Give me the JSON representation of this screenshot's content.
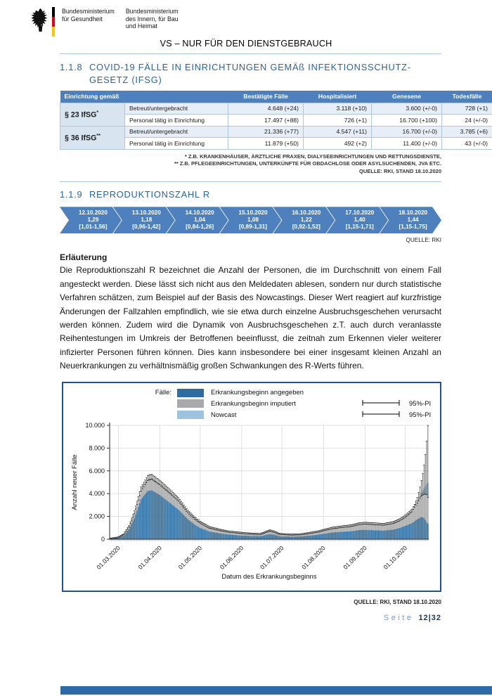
{
  "header": {
    "ministry1": [
      "Bundesministerium",
      "für Gesundheit"
    ],
    "ministry2": [
      "Bundesministerium",
      "des Innern, für Bau",
      "und Heimat"
    ],
    "classification": "VS – NUR FÜR DEN DIENSTGEBRAUCH"
  },
  "sections": {
    "s118": {
      "number": "1.1.8",
      "title": "COVID-19 FÄLLE IN EINRICHTUNGEN GEMÄß INFEKTIONSSCHUTZ-GESETZ (IFSG)"
    },
    "s119": {
      "number": "1.1.9",
      "title": "REPRODUKTIONSZAHL R"
    }
  },
  "table": {
    "headers": [
      "Einrichtung gemäß",
      "Bestätigte Fälle",
      "Hospitalisiert",
      "Genesene",
      "Todesfälle"
    ],
    "groups": [
      {
        "label": "§ 23 IfSG",
        "sup": "*",
        "rows": [
          {
            "name": "Betreut/untergebracht",
            "cells": [
              "4.648 (+24)",
              "3.118 (+10)",
              "3.600 (+/-0)",
              "728 (+1)"
            ]
          },
          {
            "name": "Personal tätig in Einrichtung",
            "cells": [
              "17.497 (+88)",
              "726 (+1)",
              "16.700 (+100)",
              "24 (+/-0)"
            ]
          }
        ]
      },
      {
        "label": "§ 36 IfSG",
        "sup": "**",
        "rows": [
          {
            "name": "Betreut/untergebracht",
            "cells": [
              "21.336 (+77)",
              "4.547 (+11)",
              "16.700 (+/-0)",
              "3.785 (+6)"
            ]
          },
          {
            "name": "Personal tätig in Einrichtung",
            "cells": [
              "11.879 (+50)",
              "492 (+2)",
              "11.400 (+/-0)",
              "43 (+/-0)"
            ]
          }
        ]
      }
    ]
  },
  "footnotes": [
    "* Z.B. KRANKENHÄUSER, ÄRZTLICHE PRAXEN, DIALYSEEINRICHTUNGEN UND RETTUNGSDIENSTE,",
    "** Z.B. PFLEGEEINRICHTUNGEN, UNTERKÜNFTE FÜR OBDACHLOSE ODER ASYLSUCHENDEN, JVA ETC.",
    "QUELLE: RKI, STAND 18.10.2020"
  ],
  "r_values": [
    {
      "date": "12.10.2020",
      "r": "1,29",
      "ci": "[1,01-1,56]"
    },
    {
      "date": "13.10.2020",
      "r": "1,18",
      "ci": "[0,96-1,42]"
    },
    {
      "date": "14.10.2020",
      "r": "1,04",
      "ci": "[0,84-1,26]"
    },
    {
      "date": "15.10.2020",
      "r": "1,08",
      "ci": "[0,89-1,31]"
    },
    {
      "date": "16.10.2020",
      "r": "1,22",
      "ci": "[0,92-1,52]"
    },
    {
      "date": "17.10.2020",
      "r": "1,40",
      "ci": "[1,15-1,71]"
    },
    {
      "date": "18.10.2020",
      "r": "1,44",
      "ci": "[1,15-1,75]"
    }
  ],
  "r_source": "QUELLE: RKI",
  "explanation": {
    "title": "Erläuterung",
    "body": "Die Reproduktionszahl R bezeichnet die Anzahl der Personen, die im Durchschnitt von einem Fall angesteckt werden. Diese lässt sich nicht aus den Meldedaten ablesen, sondern nur durch statistische Verfahren schätzen, zum Beispiel auf der Basis des Nowcastings. Dieser Wert reagiert auf kurzfristige Änderungen der Fallzahlen empfindlich, wie sie etwa durch einzelne Ausbruchsgeschehen verursacht werden können. Zudem wird die Dynamik von Ausbruchsgeschehen z.T. auch durch veranlasste Reihentestungen im Umkreis der Betroffenen beeinflusst, die zeitnah zum Erkennen vieler weiterer infizierter Personen führen können. Dies kann insbesondere bei einer insgesamt kleinen Anzahl an Neuerkrankungen zu verhältnismäßig großen Schwankungen des R-Werts führen."
  },
  "chart_data": {
    "type": "bar",
    "stacked": true,
    "legend_label": "Fälle:",
    "series_legend": [
      {
        "name": "Erkrankungsbeginn angegeben",
        "color": "#2e6d9e",
        "pi_label": ""
      },
      {
        "name": "Erkrankungsbeginn imputiert",
        "color": "#a9a9a9",
        "pi_label": "95%-PI"
      },
      {
        "name": "Nowcast",
        "color": "#9cc3e0",
        "pi_label": "95%-PI"
      }
    ],
    "ylabel": "Anzahl neuer Fälle",
    "xlabel": "Datum des Erkrankungsbeginns",
    "ylim": [
      0,
      10000
    ],
    "grid": true,
    "y_ticks": [
      {
        "v": 0,
        "label": "0"
      },
      {
        "v": 2000,
        "label": "2.000"
      },
      {
        "v": 4000,
        "label": "4.000"
      },
      {
        "v": 6000,
        "label": "6.000"
      },
      {
        "v": 8000,
        "label": "8.000"
      },
      {
        "v": 10000,
        "label": "10.000"
      }
    ],
    "day_zero": "24.02.2020",
    "x_ticks": [
      {
        "d": 6,
        "label": "01.03.2020"
      },
      {
        "d": 37,
        "label": "01.04.2020"
      },
      {
        "d": 67,
        "label": "01.05.2020"
      },
      {
        "d": 98,
        "label": "01.06.2020"
      },
      {
        "d": 128,
        "label": "01.07.2020"
      },
      {
        "d": 159,
        "label": "01.08.2020"
      },
      {
        "d": 190,
        "label": "01.09.2020"
      },
      {
        "d": 220,
        "label": "01.10.2020"
      }
    ],
    "anchors": [
      {
        "d": 0,
        "t": 40,
        "b": 32
      },
      {
        "d": 6,
        "t": 140,
        "b": 112
      },
      {
        "d": 10,
        "t": 400,
        "b": 320
      },
      {
        "d": 14,
        "t": 1100,
        "b": 880
      },
      {
        "d": 18,
        "t": 2300,
        "b": 1840
      },
      {
        "d": 23,
        "t": 4300,
        "b": 3500
      },
      {
        "d": 28,
        "t": 5250,
        "b": 4250
      },
      {
        "d": 31,
        "t": 5350,
        "b": 4300
      },
      {
        "d": 34,
        "t": 5100,
        "b": 4100
      },
      {
        "d": 37,
        "t": 4850,
        "b": 3900
      },
      {
        "d": 44,
        "t": 4150,
        "b": 3250
      },
      {
        "d": 51,
        "t": 3400,
        "b": 2600
      },
      {
        "d": 58,
        "t": 2350,
        "b": 1750
      },
      {
        "d": 63,
        "t": 1800,
        "b": 1300
      },
      {
        "d": 67,
        "t": 1450,
        "b": 1000
      },
      {
        "d": 74,
        "t": 1000,
        "b": 680
      },
      {
        "d": 81,
        "t": 800,
        "b": 540
      },
      {
        "d": 88,
        "t": 640,
        "b": 420
      },
      {
        "d": 98,
        "t": 520,
        "b": 330
      },
      {
        "d": 105,
        "t": 460,
        "b": 290
      },
      {
        "d": 112,
        "t": 430,
        "b": 270
      },
      {
        "d": 116,
        "t": 600,
        "b": 380
      },
      {
        "d": 119,
        "t": 730,
        "b": 450
      },
      {
        "d": 122,
        "t": 640,
        "b": 400
      },
      {
        "d": 126,
        "t": 450,
        "b": 280
      },
      {
        "d": 128,
        "t": 420,
        "b": 260
      },
      {
        "d": 135,
        "t": 380,
        "b": 235
      },
      {
        "d": 142,
        "t": 400,
        "b": 250
      },
      {
        "d": 149,
        "t": 520,
        "b": 330
      },
      {
        "d": 155,
        "t": 640,
        "b": 400
      },
      {
        "d": 159,
        "t": 760,
        "b": 480
      },
      {
        "d": 166,
        "t": 950,
        "b": 600
      },
      {
        "d": 173,
        "t": 1060,
        "b": 660
      },
      {
        "d": 180,
        "t": 1150,
        "b": 710
      },
      {
        "d": 186,
        "t": 1320,
        "b": 810
      },
      {
        "d": 190,
        "t": 1360,
        "b": 830
      },
      {
        "d": 197,
        "t": 1310,
        "b": 790
      },
      {
        "d": 204,
        "t": 1260,
        "b": 760
      },
      {
        "d": 211,
        "t": 1410,
        "b": 850
      },
      {
        "d": 216,
        "t": 1650,
        "b": 1000
      },
      {
        "d": 220,
        "t": 1950,
        "b": 1170
      },
      {
        "d": 225,
        "t": 2450,
        "b": 1420
      },
      {
        "d": 229,
        "t": 3250,
        "b": 1750
      },
      {
        "d": 232,
        "t": 4050,
        "b": 1950
      },
      {
        "d": 234,
        "t": 4450,
        "b": 1900,
        "nc": 250
      },
      {
        "d": 235,
        "t": 4650,
        "b": 1700,
        "nc": 550
      },
      {
        "d": 236,
        "t": 4850,
        "b": 1500,
        "nc": 900
      },
      {
        "d": 237,
        "t": 4950,
        "b": 1350,
        "nc": 1250
      }
    ]
  },
  "chart_source": "QUELLE: RKI, STAND 18.10.2020",
  "footer": {
    "label": "Seite",
    "pagination": "12|32"
  }
}
